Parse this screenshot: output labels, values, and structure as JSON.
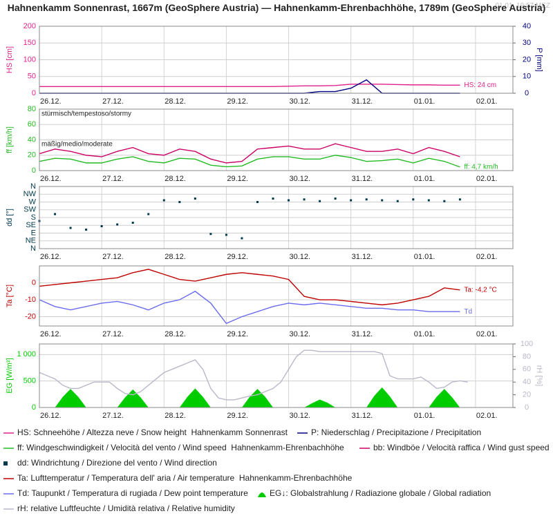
{
  "title": "Hahnenkamm Sonnenrast, 1667m (GeoSphere Austria) — Hahnenkamm-Ehrenbachhöhe, 1789m (GeoSphere Austria)",
  "timestamp": "01.01. 19:57 MEZ",
  "chart_data": [
    {
      "type": "line",
      "ylabel": "HS [cm]",
      "y2label": "P [mm]",
      "xlim": [
        0,
        7.6
      ],
      "xticks": [
        {
          "value": 0,
          "label": "26.12."
        },
        {
          "value": 1,
          "label": "27.12."
        },
        {
          "value": 2,
          "label": "28.12."
        },
        {
          "value": 3,
          "label": "29.12."
        },
        {
          "value": 4,
          "label": "30.12."
        },
        {
          "value": 5,
          "label": "31.12."
        },
        {
          "value": 6,
          "label": "01.01."
        },
        {
          "value": 7,
          "label": "02.01."
        }
      ],
      "ylim": [
        0,
        200
      ],
      "yticks": [
        0,
        50,
        100,
        150,
        200
      ],
      "y2lim": [
        0,
        40
      ],
      "y2ticks": [
        0,
        10,
        20,
        30,
        40
      ],
      "grid": true,
      "x": [
        0,
        0.25,
        0.5,
        0.75,
        1,
        1.25,
        1.5,
        1.75,
        2,
        2.25,
        2.5,
        2.75,
        3,
        3.25,
        3.5,
        3.75,
        4,
        4.25,
        4.5,
        4.75,
        5,
        5.25,
        5.5,
        5.75,
        6,
        6.25,
        6.5,
        6.75
      ],
      "series": [
        {
          "name": "HS: Schneehöhe / Altezza neve / Snow height  Hahnenkamm Sonnenrast",
          "color": "#e0208a",
          "end_label": "HS: 24 cm",
          "values": [
            20,
            20,
            20,
            20,
            20,
            20,
            20,
            20,
            20,
            20,
            20,
            20,
            20,
            20,
            20,
            20,
            21,
            22,
            22,
            23,
            27,
            27,
            27,
            26,
            25,
            25,
            24,
            24
          ]
        },
        {
          "name": "P: Niederschlag / Precipitazione / Precipitation",
          "color": "#000080",
          "axis": "y2",
          "values": [
            0,
            0,
            0,
            0,
            0,
            0,
            0,
            0,
            0,
            0,
            0,
            0,
            0,
            0,
            0,
            0,
            0,
            0,
            1,
            1,
            3,
            8,
            0,
            0,
            0,
            0,
            0,
            0
          ]
        }
      ]
    },
    {
      "type": "line",
      "ylabel": "ff [km/h]",
      "annotations": [
        "stürmisch/tempestoso/stormy",
        "mäßig/medio/moderate"
      ],
      "xlim": [
        0,
        7.6
      ],
      "xticks": [
        {
          "value": 0,
          "label": "26.12."
        },
        {
          "value": 1,
          "label": "27.12."
        },
        {
          "value": 2,
          "label": "28.12."
        },
        {
          "value": 3,
          "label": "29.12."
        },
        {
          "value": 4,
          "label": "30.12."
        },
        {
          "value": 5,
          "label": "31.12."
        },
        {
          "value": 6,
          "label": "01.01."
        },
        {
          "value": 7,
          "label": "02.01."
        }
      ],
      "ylim": [
        0,
        80
      ],
      "yticks": [
        0,
        20,
        40,
        60,
        80
      ],
      "grid": true,
      "x": [
        0,
        0.25,
        0.5,
        0.75,
        1,
        1.25,
        1.5,
        1.75,
        2,
        2.25,
        2.5,
        2.75,
        3,
        3.25,
        3.5,
        3.75,
        4,
        4.25,
        4.5,
        4.75,
        5,
        5.25,
        5.5,
        5.75,
        6,
        6.25,
        6.5,
        6.75
      ],
      "series": [
        {
          "name": "ff: Windgeschwindigkeit / Velocità del vento / Wind speed  Hahnenkamm-Ehrenbachhöhe",
          "color": "#22bb22",
          "end_label": "ff: 4,7 km/h",
          "values": [
            12,
            16,
            15,
            10,
            10,
            15,
            18,
            12,
            10,
            16,
            15,
            7,
            5,
            6,
            15,
            18,
            18,
            15,
            15,
            20,
            17,
            12,
            13,
            15,
            10,
            16,
            12,
            4.7
          ]
        },
        {
          "name": "bb: Windböe / Velocità raffica / Wind gust speed",
          "color": "#cc0066",
          "values": [
            22,
            28,
            25,
            20,
            18,
            25,
            30,
            22,
            20,
            28,
            25,
            15,
            10,
            12,
            28,
            30,
            32,
            28,
            28,
            35,
            30,
            25,
            25,
            28,
            22,
            30,
            25,
            18
          ]
        }
      ]
    },
    {
      "type": "scatter",
      "ylabel": "dd [°]",
      "xlim": [
        0,
        7.6
      ],
      "xticks": [
        {
          "value": 0,
          "label": "26.12."
        },
        {
          "value": 1,
          "label": "27.12."
        },
        {
          "value": 2,
          "label": "28.12."
        },
        {
          "value": 3,
          "label": "29.12."
        },
        {
          "value": 4,
          "label": "30.12."
        },
        {
          "value": 5,
          "label": "31.12."
        },
        {
          "value": 6,
          "label": "01.01."
        },
        {
          "value": 7,
          "label": "02.01."
        }
      ],
      "ylim": [
        0,
        360
      ],
      "yticks": [
        {
          "value": 0,
          "label": "N"
        },
        {
          "value": 45,
          "label": "NE"
        },
        {
          "value": 90,
          "label": "E"
        },
        {
          "value": 135,
          "label": "SE"
        },
        {
          "value": 180,
          "label": "S"
        },
        {
          "value": 225,
          "label": "SW"
        },
        {
          "value": 270,
          "label": "W"
        },
        {
          "value": 315,
          "label": "NW"
        },
        {
          "value": 360,
          "label": "N"
        }
      ],
      "grid": true,
      "x": [
        0,
        0.25,
        0.5,
        0.75,
        1,
        1.25,
        1.5,
        1.75,
        2,
        2.25,
        2.5,
        2.75,
        3,
        3.25,
        3.5,
        3.75,
        4,
        4.25,
        4.5,
        4.75,
        5,
        5.25,
        5.5,
        5.75,
        6,
        6.25,
        6.5,
        6.75
      ],
      "series": [
        {
          "name": "dd: Windrichtung / Direzione del vento / Wind direction",
          "color": "#003a4c",
          "values": [
            160,
            200,
            120,
            110,
            130,
            140,
            150,
            200,
            280,
            270,
            290,
            85,
            80,
            60,
            270,
            290,
            280,
            285,
            275,
            290,
            280,
            285,
            280,
            275,
            285,
            280,
            275,
            285
          ]
        }
      ]
    },
    {
      "type": "line",
      "ylabel": "Ta [°C]",
      "xlim": [
        0,
        7.6
      ],
      "xticks": [
        {
          "value": 0,
          "label": "26.12."
        },
        {
          "value": 1,
          "label": "27.12."
        },
        {
          "value": 2,
          "label": "28.12."
        },
        {
          "value": 3,
          "label": "29.12."
        },
        {
          "value": 4,
          "label": "30.12."
        },
        {
          "value": 5,
          "label": "31.12."
        },
        {
          "value": 6,
          "label": "01.01."
        },
        {
          "value": 7,
          "label": "02.01."
        }
      ],
      "ylim": [
        -25.5,
        10
      ],
      "yticks": [
        -20,
        -10,
        0
      ],
      "grid": true,
      "x": [
        0,
        0.25,
        0.5,
        0.75,
        1,
        1.25,
        1.5,
        1.75,
        2,
        2.25,
        2.5,
        2.75,
        3,
        3.25,
        3.5,
        3.75,
        4,
        4.25,
        4.5,
        4.75,
        5,
        5.25,
        5.5,
        5.75,
        6,
        6.25,
        6.5,
        6.75
      ],
      "series": [
        {
          "name": "Ta: Lufttemperatur / Temperatura dell' aria / Air temperature  Hahnenkamm-Ehrenbachhöhe",
          "color": "#c00000",
          "end_label": "Ta: -4,2 °C",
          "values": [
            -2,
            -1,
            0,
            1,
            2,
            3,
            6,
            8,
            5,
            2,
            1,
            3,
            5,
            6,
            5,
            4,
            2,
            -8,
            -10,
            -10,
            -11,
            -12,
            -13,
            -12,
            -10,
            -8,
            -3,
            -4.2
          ]
        },
        {
          "name": "Td: Taupunkt / Temperatura di rugiada / Dew point temperature",
          "color": "#6a6aee",
          "end_label": "Td",
          "values": [
            -10,
            -14,
            -16,
            -14,
            -12,
            -11,
            -13,
            -16,
            -12,
            -10,
            -5,
            -12,
            -24,
            -20,
            -17,
            -14,
            -12,
            -13,
            -12,
            -13,
            -14,
            -15,
            -15,
            -16,
            -16,
            -17,
            -17,
            -17
          ]
        }
      ]
    },
    {
      "type": "line",
      "ylabel": "EG [W/m²]",
      "y2label": "rH [%]",
      "xlim": [
        0,
        7.6
      ],
      "xticks": [
        {
          "value": 0,
          "label": "26.12."
        },
        {
          "value": 1,
          "label": "27.12."
        },
        {
          "value": 2,
          "label": "28.12."
        },
        {
          "value": 3,
          "label": "29.12."
        },
        {
          "value": 4,
          "label": "30.12."
        },
        {
          "value": 5,
          "label": "31.12."
        },
        {
          "value": 6,
          "label": "01.01."
        },
        {
          "value": 7,
          "label": "02.01."
        }
      ],
      "ylim": [
        0,
        1200
      ],
      "yticks": [
        0,
        500,
        {
          "value": 1000,
          "label": "1 000"
        }
      ],
      "y2lim": [
        0,
        100
      ],
      "y2ticks": [
        0,
        20,
        40,
        60,
        80,
        100
      ],
      "grid": true,
      "x": [
        0,
        0.125,
        0.25,
        0.375,
        0.5,
        0.625,
        0.75,
        0.875,
        1,
        1.125,
        1.25,
        1.375,
        1.5,
        1.625,
        1.75,
        1.875,
        2,
        2.125,
        2.25,
        2.375,
        2.5,
        2.625,
        2.75,
        2.875,
        3,
        3.125,
        3.25,
        3.375,
        3.5,
        3.625,
        3.75,
        3.875,
        4,
        4.125,
        4.25,
        4.375,
        4.5,
        4.625,
        4.75,
        4.875,
        5,
        5.125,
        5.25,
        5.375,
        5.5,
        5.625,
        5.75,
        5.875,
        6,
        6.125,
        6.25,
        6.375,
        6.5,
        6.625,
        6.75,
        6.875
      ],
      "series": [
        {
          "name": "EG↓: Globalstrahlung / Radiazione globale / Global radiation",
          "color": "#00cc00",
          "type": "area",
          "values": [
            0,
            0,
            0,
            200,
            350,
            200,
            0,
            0,
            0,
            0,
            0,
            190,
            340,
            190,
            0,
            0,
            0,
            0,
            0,
            200,
            360,
            200,
            0,
            0,
            0,
            0,
            0,
            200,
            350,
            200,
            0,
            0,
            0,
            0,
            0,
            80,
            150,
            90,
            0,
            0,
            0,
            0,
            0,
            220,
            380,
            210,
            0,
            0,
            0,
            0,
            0,
            200,
            350,
            190,
            0,
            0
          ]
        },
        {
          "name": "rH: relative Luftfeuchte / Umidità relativa / Relative humidity",
          "color": "#b8b8c8",
          "axis": "y2",
          "values": [
            55,
            50,
            45,
            35,
            30,
            30,
            35,
            40,
            40,
            40,
            30,
            22,
            20,
            25,
            35,
            45,
            55,
            60,
            65,
            70,
            75,
            60,
            30,
            15,
            12,
            12,
            15,
            18,
            20,
            25,
            30,
            40,
            60,
            80,
            90,
            90,
            88,
            88,
            88,
            88,
            88,
            88,
            88,
            88,
            85,
            50,
            45,
            45,
            45,
            48,
            40,
            30,
            32,
            40,
            42,
            40
          ]
        }
      ]
    }
  ]
}
